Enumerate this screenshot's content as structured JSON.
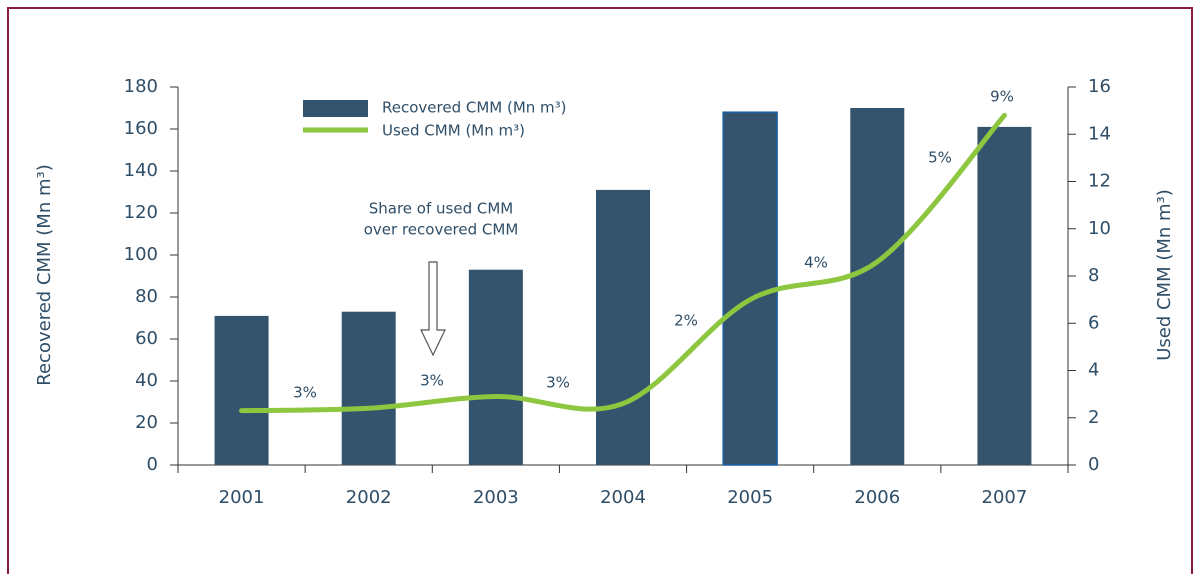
{
  "chart_data": {
    "type": "bar_line",
    "categories": [
      "2001",
      "2002",
      "2003",
      "2004",
      "2005",
      "2006",
      "2007"
    ],
    "series": [
      {
        "name": "Recovered CMM (Mn m³)",
        "color": "#34546e",
        "type": "bar",
        "values": [
          71,
          73,
          93,
          131,
          168,
          170,
          161
        ]
      },
      {
        "name": "Used CMM (Mn m³)",
        "color": "#8dc63f",
        "type": "line",
        "axis": "y2",
        "values": [
          2.3,
          2.4,
          2.9,
          2.6,
          7.0,
          8.6,
          14.8
        ]
      }
    ],
    "ylabel": "Recovered CMM (Mn m³)",
    "y2label": "Used CMM (Mn m³)",
    "ylim": [
      0,
      180
    ],
    "yticks": [
      0,
      20,
      40,
      60,
      80,
      100,
      120,
      140,
      160,
      180
    ],
    "y2lim": [
      0,
      16
    ],
    "y2ticks": [
      0,
      2,
      4,
      6,
      8,
      10,
      12,
      14,
      16
    ],
    "annotations": [
      "Share of used CMM",
      "over recovered CMM"
    ],
    "share_labels": [
      "3%",
      "3%",
      "3%",
      "2%",
      "4%",
      "5%",
      "9%"
    ],
    "legend": "top-left"
  }
}
